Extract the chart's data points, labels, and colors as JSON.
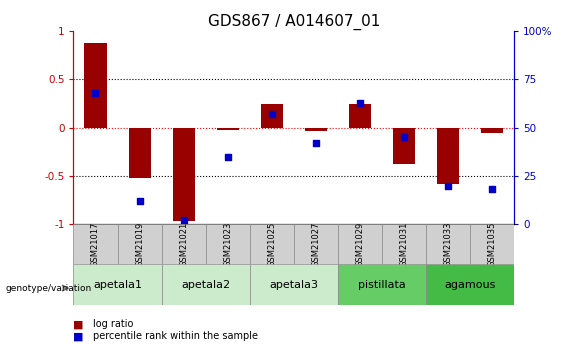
{
  "title": "GDS867 / A014607_01",
  "samples": [
    "GSM21017",
    "GSM21019",
    "GSM21021",
    "GSM21023",
    "GSM21025",
    "GSM21027",
    "GSM21029",
    "GSM21031",
    "GSM21033",
    "GSM21035"
  ],
  "log_ratio": [
    0.88,
    -0.52,
    -0.97,
    -0.02,
    0.24,
    -0.03,
    0.25,
    -0.38,
    -0.58,
    -0.06
  ],
  "percentile_rank": [
    68,
    12,
    2,
    35,
    57,
    42,
    63,
    45,
    20,
    18
  ],
  "groups": [
    {
      "label": "apetala1",
      "start": 0,
      "end": 2,
      "color": "#cceacc"
    },
    {
      "label": "apetala2",
      "start": 2,
      "end": 4,
      "color": "#cceacc"
    },
    {
      "label": "apetala3",
      "start": 4,
      "end": 6,
      "color": "#cceacc"
    },
    {
      "label": "pistillata",
      "start": 6,
      "end": 8,
      "color": "#66cc66"
    },
    {
      "label": "agamous",
      "start": 8,
      "end": 10,
      "color": "#44bb44"
    }
  ],
  "bar_color": "#990000",
  "dot_color": "#0000cc",
  "ylim_left": [
    -1,
    1
  ],
  "ylim_right": [
    0,
    100
  ],
  "yticks_left": [
    -1,
    -0.5,
    0,
    0.5,
    1
  ],
  "yticks_right": [
    0,
    25,
    50,
    75,
    100
  ],
  "left_axis_color": "#cc0000",
  "right_axis_color": "#0000cc",
  "title_fontsize": 11,
  "tick_fontsize": 7.5,
  "sample_fontsize": 6,
  "group_text_fontsize": 8,
  "group_header_color": "#d0d0d0",
  "legend_log_ratio": "log ratio",
  "legend_percentile": "percentile rank within the sample"
}
